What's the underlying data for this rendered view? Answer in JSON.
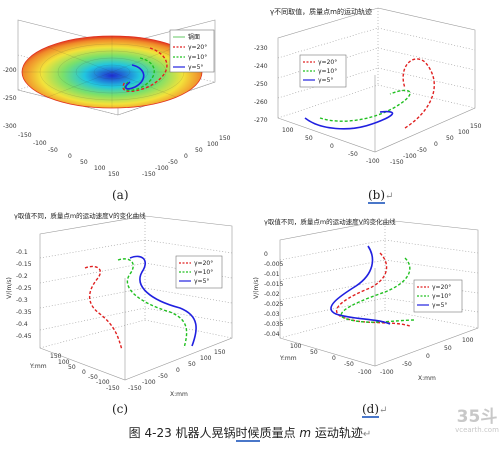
{
  "charts": [
    {
      "type": "line",
      "title": "",
      "legend": [
        "锅面",
        "γ=20°",
        "γ=10°",
        "γ=5°"
      ],
      "z_ticks": [
        "-200",
        "-250",
        "-300"
      ],
      "x_ticks": [
        "-150",
        "-100",
        "-50",
        "0",
        "50",
        "100",
        "150"
      ],
      "y_ticks": [
        "-150",
        "-100",
        "-50",
        "0",
        "50",
        "100",
        "150"
      ],
      "label": "(a)"
    },
    {
      "type": "line",
      "title": "γ不同取值，质量点m的运动轨迹",
      "legend": [
        "γ=20°",
        "γ=10°",
        "γ=5°"
      ],
      "z_ticks": [
        "-230",
        "-240",
        "-250",
        "-260",
        "-270"
      ],
      "x_ticks": [
        "100",
        "50",
        "0",
        "-50",
        "-100"
      ],
      "y_ticks": [
        "-150",
        "-100",
        "-50",
        "0",
        "50",
        "100",
        "150"
      ],
      "label": "(b)"
    },
    {
      "type": "line",
      "title": "γ取值不同，质量点m的运动速度V的变化曲线",
      "legend": [
        "γ=20°",
        "γ=10°",
        "γ=5°"
      ],
      "z_label": "V/(m/s)",
      "z_ticks": [
        "-0.1",
        "-0.15",
        "-0.2",
        "-0.25",
        "-0.3",
        "-0.35",
        "-0.4",
        "-0.45"
      ],
      "x_label": "X:mm",
      "x_ticks": [
        "-150",
        "-100",
        "-50",
        "0",
        "50",
        "100",
        "150"
      ],
      "y_label": "Y:mm",
      "y_ticks": [
        "150",
        "100",
        "50",
        "0",
        "-50",
        "-100",
        "-150"
      ],
      "label": "(c)"
    },
    {
      "type": "line",
      "title": "γ取值不同，质量点m的运动速度V的变化曲线",
      "legend": [
        "γ=20°",
        "γ=10°",
        "γ=5°"
      ],
      "z_label": "V/(m/s)",
      "z_ticks": [
        "0",
        "-0.005",
        "-0.01",
        "-0.015",
        "-0.02",
        "-0.025",
        "-0.03",
        "-0.035",
        "-0.04"
      ],
      "x_label": "X:mm",
      "x_ticks": [
        "-100",
        "-50",
        "0",
        "50",
        "100"
      ],
      "y_label": "Y:mm",
      "y_ticks": [
        "100",
        "50",
        "0",
        "-50",
        "-100"
      ],
      "label": "(d)"
    }
  ],
  "series_colors": {
    "pan": "#7fd07f",
    "g20": "#e02020",
    "g10": "#20c020",
    "g5": "#2020e0"
  },
  "caption": {
    "prefix": "图 4-23  机器人晃锅",
    "underlined": "时候",
    "middle": "质量点 ",
    "italic_m": "m",
    "suffix": " 运动轨迹",
    "return_mark": "↵"
  },
  "return_mark": "↵",
  "watermark": {
    "big": "35斗",
    "small": "vcearth.com"
  }
}
